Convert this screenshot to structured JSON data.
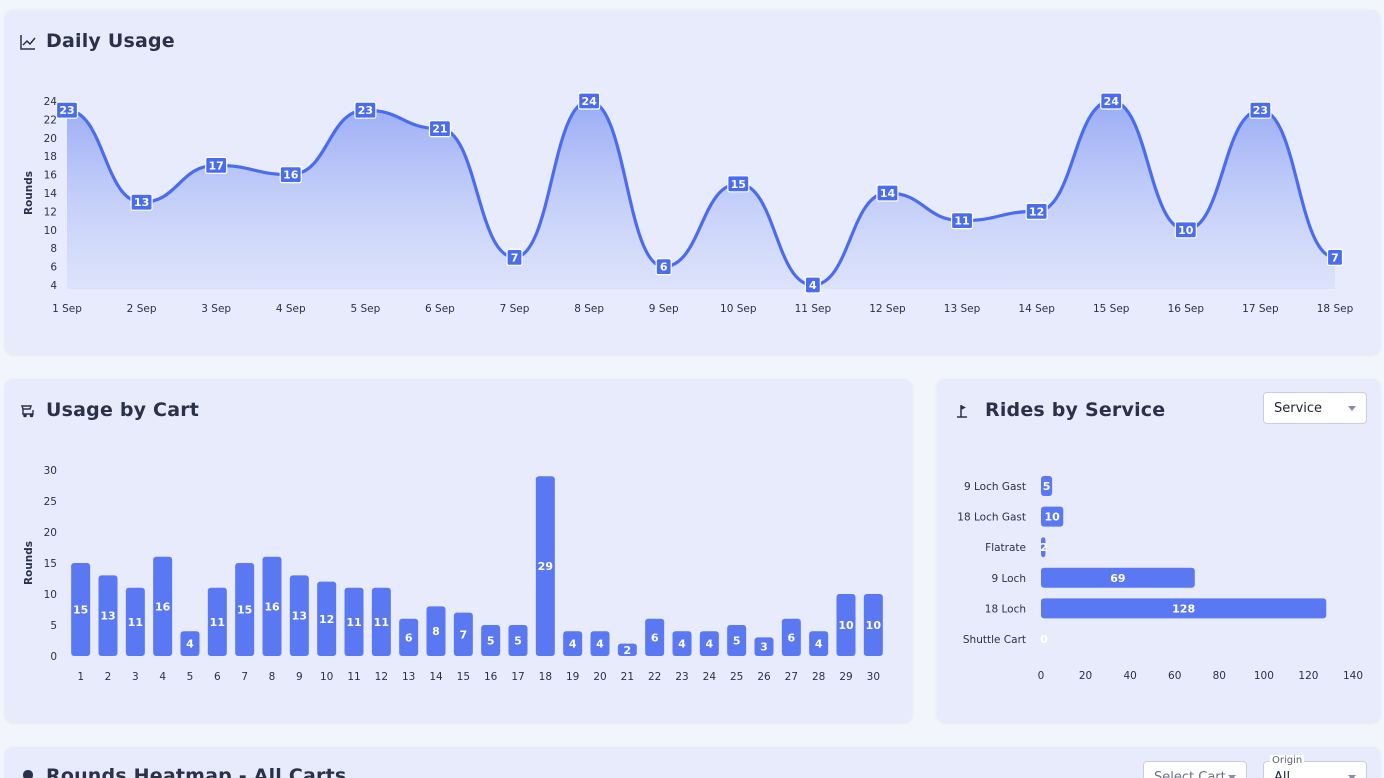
{
  "daily_usage": {
    "title": "Daily Usage",
    "chart_data": {
      "type": "area",
      "ylabel": "Rounds",
      "x": [
        "1 Sep",
        "2 Sep",
        "3 Sep",
        "4 Sep",
        "5 Sep",
        "6 Sep",
        "7 Sep",
        "8 Sep",
        "9 Sep",
        "10 Sep",
        "11 Sep",
        "12 Sep",
        "13 Sep",
        "14 Sep",
        "15 Sep",
        "16 Sep",
        "17 Sep",
        "18 Sep"
      ],
      "values": [
        23,
        13,
        17,
        16,
        23,
        21,
        7,
        24,
        6,
        15,
        4,
        14,
        11,
        12,
        24,
        10,
        23,
        7
      ],
      "yticks": [
        4,
        6,
        8,
        10,
        12,
        14,
        16,
        18,
        20,
        22,
        24
      ],
      "ylim": [
        4,
        24
      ],
      "color": "#4a6cf0"
    }
  },
  "usage_by_cart": {
    "title": "Usage by Cart",
    "chart_data": {
      "type": "bar",
      "ylabel": "Rounds",
      "categories": [
        "1",
        "2",
        "3",
        "4",
        "5",
        "6",
        "7",
        "8",
        "9",
        "10",
        "11",
        "12",
        "13",
        "14",
        "15",
        "16",
        "17",
        "18",
        "19",
        "20",
        "21",
        "22",
        "23",
        "24",
        "25",
        "26",
        "27",
        "28",
        "29",
        "30"
      ],
      "values": [
        15,
        13,
        11,
        16,
        4,
        11,
        15,
        16,
        13,
        12,
        11,
        11,
        6,
        8,
        7,
        5,
        5,
        29,
        4,
        4,
        2,
        6,
        4,
        4,
        5,
        3,
        6,
        4,
        10,
        10
      ],
      "yticks": [
        0,
        5,
        10,
        15,
        20,
        25,
        30
      ],
      "ylim": [
        0,
        30
      ],
      "color": "#5b78f3"
    }
  },
  "rides_by_service": {
    "title": "Rides by Service",
    "select": {
      "value": "Service"
    },
    "chart_data": {
      "type": "bar",
      "orientation": "horizontal",
      "categories": [
        "9 Loch Gast",
        "18 Loch Gast",
        "Flatrate",
        "9 Loch",
        "18 Loch",
        "Shuttle Cart"
      ],
      "values": [
        5,
        10,
        2,
        69,
        128,
        0
      ],
      "xticks": [
        0,
        20,
        40,
        60,
        80,
        100,
        120,
        140
      ],
      "xlim": [
        0,
        140
      ],
      "color": "#5b78f3"
    }
  },
  "heatmap": {
    "title": "Rounds Heatmap - All Carts",
    "cart_select": {
      "placeholder": "Select Cart"
    },
    "origin_select": {
      "label": "Origin",
      "value": "All"
    }
  }
}
